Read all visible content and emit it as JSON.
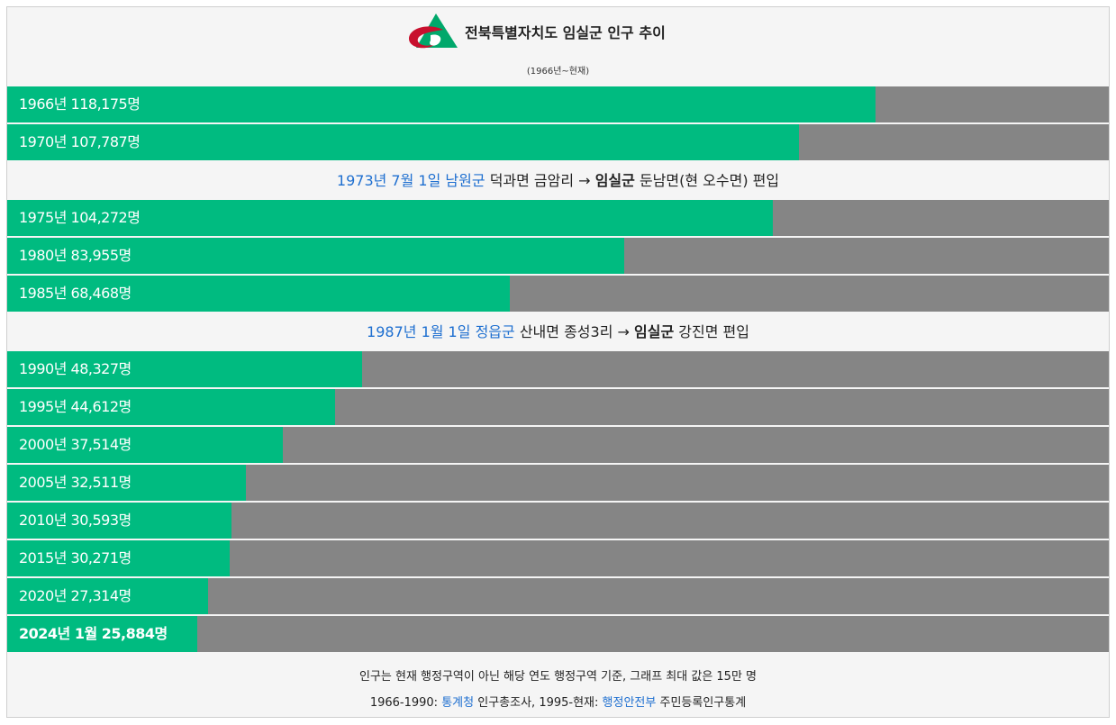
{
  "header": {
    "title": "전북특별자치도 임실군 인구 추이",
    "subtitle": "(1966년~현재)"
  },
  "chart_data": {
    "type": "bar",
    "orientation": "horizontal",
    "xlim": [
      0,
      150000
    ],
    "categories": [
      "1966년",
      "1970년",
      "1975년",
      "1980년",
      "1985년",
      "1990년",
      "1995년",
      "2000년",
      "2005년",
      "2010년",
      "2015년",
      "2020년",
      "2024년 1월"
    ],
    "values": [
      118175,
      107787,
      104272,
      83955,
      68468,
      48327,
      44612,
      37514,
      32511,
      30593,
      30271,
      27314,
      25884
    ],
    "labels": [
      "1966년 118,175명",
      "1970년 107,787명",
      "1975년 104,272명",
      "1980년 83,955명",
      "1985년 68,468명",
      "1990년 48,327명",
      "1995년 44,612명",
      "2000년 37,514명",
      "2005년 32,511명",
      "2010년 30,593명",
      "2015년 30,271명",
      "2020년 27,314명",
      "2024년 1월 25,884명"
    ]
  },
  "colors": {
    "bar": "#00bb80",
    "track": "#858585",
    "link": "#1e6fd0"
  },
  "events": [
    {
      "after_index": 1,
      "date_link": "1973년 7월 1일",
      "from_link": "남원군",
      "from_rest": "덕과면 금암리 →",
      "to_bold": "임실군",
      "to_rest": "둔남면(현 오수면) 편입"
    },
    {
      "after_index": 4,
      "date_link": "1987년 1월 1일",
      "from_link": "정읍군",
      "from_rest": "산내면 종성3리 →",
      "to_bold": "임실군",
      "to_rest": "강진면 편입"
    }
  ],
  "footer": {
    "note": "인구는 현재 행정구역이 아닌 해당 연도 행정구역 기준, 그래프 최대 값은 15만 명",
    "src_a": "1966-1990:",
    "src_a_link": "통계청",
    "src_a_rest": "인구총조사,",
    "src_b": "1995-현재:",
    "src_b_link": "행정안전부",
    "src_b_rest": "주민등록인구통계"
  }
}
